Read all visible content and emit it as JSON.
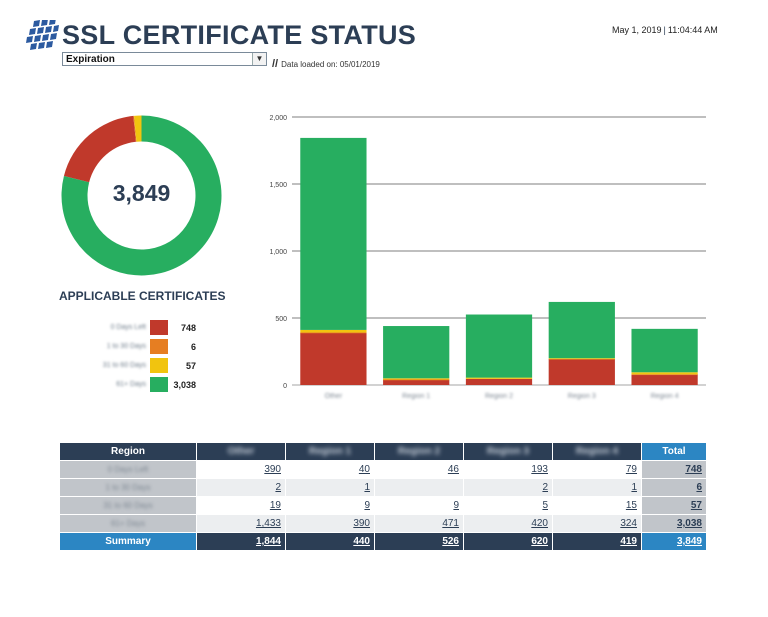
{
  "header": {
    "title": "SSL CERTIFICATE STATUS",
    "date": "May 1, 2019",
    "time": "11:04:44 AM",
    "dropdown_value": "Expiration",
    "loaded_sep": "//",
    "loaded_text": "Data loaded on: 05/01/2019"
  },
  "colors": {
    "red": "#c0392b",
    "orange": "#e67e22",
    "yellow": "#f1c40f",
    "green": "#27ae60",
    "navy": "#2c3e55",
    "blue": "#2c86c3"
  },
  "summary": {
    "total": "3,849",
    "title": "APPLICABLE CERTIFICATES",
    "legend": [
      {
        "label": "0 Days Left",
        "value": "748",
        "color": "#c0392b"
      },
      {
        "label": "1 to 30 Days",
        "value": "6",
        "color": "#e67e22"
      },
      {
        "label": "31 to 60 Days",
        "value": "57",
        "color": "#f1c40f"
      },
      {
        "label": "61+ Days",
        "value": "3,038",
        "color": "#27ae60"
      }
    ]
  },
  "chart_data": [
    {
      "type": "pie",
      "donut": true,
      "center_label": "3,849",
      "categories": [
        "0 Days Left",
        "1 to 30 Days",
        "31 to 60 Days",
        "61+ Days"
      ],
      "values": [
        748,
        6,
        57,
        3038
      ],
      "colors": [
        "#c0392b",
        "#e67e22",
        "#f1c40f",
        "#27ae60"
      ]
    },
    {
      "type": "bar",
      "stacked": true,
      "categories": [
        "Other",
        "Region 1",
        "Region 2",
        "Region 3",
        "Region 4"
      ],
      "series": [
        {
          "name": "0 Days Left",
          "values": [
            390,
            40,
            46,
            193,
            79
          ],
          "color": "#c0392b"
        },
        {
          "name": "1 to 30 Days",
          "values": [
            2,
            1,
            0,
            2,
            1
          ],
          "color": "#e67e22"
        },
        {
          "name": "31 to 60 Days",
          "values": [
            19,
            9,
            9,
            5,
            15
          ],
          "color": "#f1c40f"
        },
        {
          "name": "61+ Days",
          "values": [
            1433,
            390,
            471,
            420,
            324
          ],
          "color": "#27ae60"
        }
      ],
      "ylim": [
        0,
        2000
      ],
      "yticks": [
        0,
        500,
        1000,
        1500,
        2000
      ],
      "ytick_labels": [
        "0",
        "500",
        "1,000",
        "1,500",
        "2,000"
      ],
      "grid": true
    }
  ],
  "table": {
    "corner": "Region",
    "columns": [
      "Other",
      "Region 1",
      "Region 2",
      "Region 3",
      "Region 4"
    ],
    "total_header": "Total",
    "rows": [
      {
        "label": "0 Days Left",
        "cells": [
          "390",
          "40",
          "46",
          "193",
          "79"
        ],
        "total": "748"
      },
      {
        "label": "1 to 30 Days",
        "cells": [
          "2",
          "1",
          "",
          "2",
          "1"
        ],
        "total": "6"
      },
      {
        "label": "31 to 60 Days",
        "cells": [
          "19",
          "9",
          "9",
          "5",
          "15"
        ],
        "total": "57"
      },
      {
        "label": "61+ Days",
        "cells": [
          "1,433",
          "390",
          "471",
          "420",
          "324"
        ],
        "total": "3,038"
      }
    ],
    "summary": {
      "label": "Summary",
      "cells": [
        "1,844",
        "440",
        "526",
        "620",
        "419"
      ],
      "total": "3,849"
    }
  }
}
